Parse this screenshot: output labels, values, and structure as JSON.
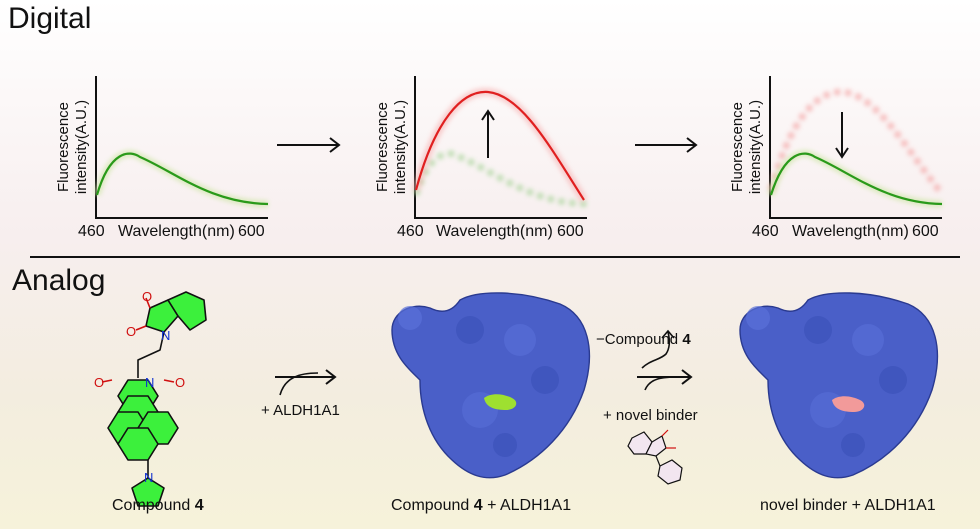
{
  "digital": {
    "title": "Digital",
    "panels": [
      {
        "ylabel_line1": "Fluorescence",
        "ylabel_line2": "intensity(A.U.)",
        "x_start": "460",
        "xlabel": "Wavelength(nm)",
        "x_end": "600"
      },
      {
        "ylabel_line1": "Fluorescence",
        "ylabel_line2": "intensity(A.U.)",
        "x_start": "460",
        "xlabel": "Wavelength(nm)",
        "x_end": "600"
      },
      {
        "ylabel_line1": "Fluorescence",
        "ylabel_line2": "intensity(A.U.)",
        "x_start": "460",
        "xlabel": "Wavelength(nm)",
        "x_end": "600"
      }
    ],
    "colors": {
      "green": "#2a9a1a",
      "red": "#e02020",
      "faded_red": "#f4a8a8",
      "faded_green": "#a8d49a"
    }
  },
  "analog": {
    "title": "Analog",
    "compound_caption_prefix": "Compound ",
    "compound_number": "4",
    "reagent1": "+ ALDH1A1",
    "complex1_prefix": "Compound ",
    "complex1_number": "4",
    "complex1_suffix": " + ALDH1A1",
    "minus_prefix": "−Compound ",
    "minus_number": "4",
    "reagent2": "+ novel binder",
    "complex2_caption": "novel binder + ALDH1A1",
    "atom_O": "O",
    "atom_N": "N",
    "colors": {
      "protein": "#4a5fc8",
      "ligand1": "#9ee030",
      "ligand2": "#f29a9a",
      "molecule": "#3cf03c"
    }
  }
}
